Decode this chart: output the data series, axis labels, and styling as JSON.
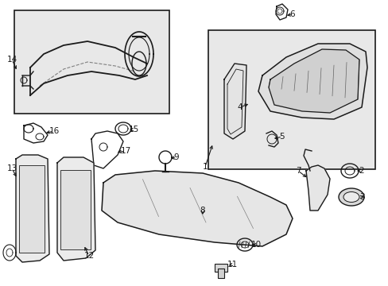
{
  "background_color": "#ffffff",
  "fig_width": 4.89,
  "fig_height": 3.6,
  "dpi": 100,
  "line_color": "#1a1a1a",
  "gray_fill": "#e8e8e8",
  "gray_fill2": "#d8d8d8",
  "label_fontsize": 7.5
}
